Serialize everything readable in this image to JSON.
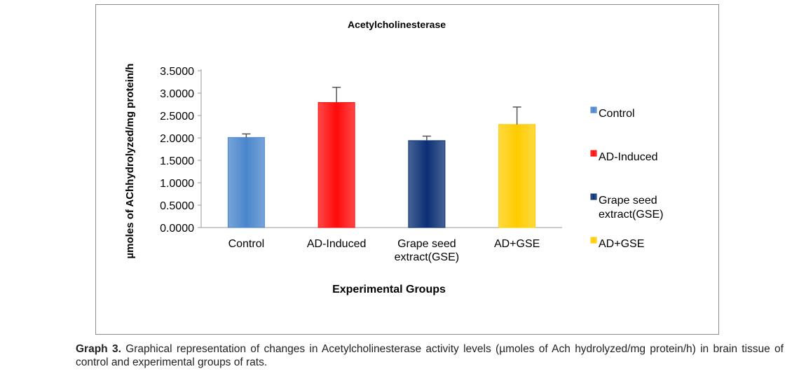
{
  "chart_data": {
    "type": "bar",
    "title": "Acetylcholinesterase",
    "xlabel": "Experimental Groups",
    "ylabel": "µmoles of AChhydrolyzed/mg protein/h",
    "categories": [
      "Control",
      "AD-Induced",
      "Grape seed extract(GSE)",
      "AD+GSE"
    ],
    "category_lines": [
      [
        "Control"
      ],
      [
        "AD-Induced"
      ],
      [
        "Grape seed",
        "extract(GSE)"
      ],
      [
        "AD+GSE"
      ]
    ],
    "values": [
      2.01,
      2.79,
      1.94,
      2.3
    ],
    "error_upper": [
      2.09,
      3.13,
      2.04,
      2.69
    ],
    "colors": [
      "#4a86cc",
      "#ff0a0a",
      "#0a2f73",
      "#ffcc00"
    ],
    "ylim": [
      0,
      3.5
    ],
    "yticks": [
      "0.0000",
      "0.5000",
      "1.0000",
      "1.5000",
      "2.0000",
      "2.5000",
      "3.0000",
      "3.5000"
    ],
    "grid": false,
    "legend_position": "right",
    "legend": [
      [
        "Control"
      ],
      [
        "AD-Induced"
      ],
      [
        "Grape seed",
        "extract(GSE)"
      ],
      [
        "AD+GSE"
      ]
    ]
  },
  "caption": {
    "label": "Graph 3.",
    "text": " Graphical representation of changes in Acetylcholinesterase activity levels (µmoles of Ach hydrolyzed/mg protein/h) in brain tissue of control and experimental groups of rats."
  }
}
